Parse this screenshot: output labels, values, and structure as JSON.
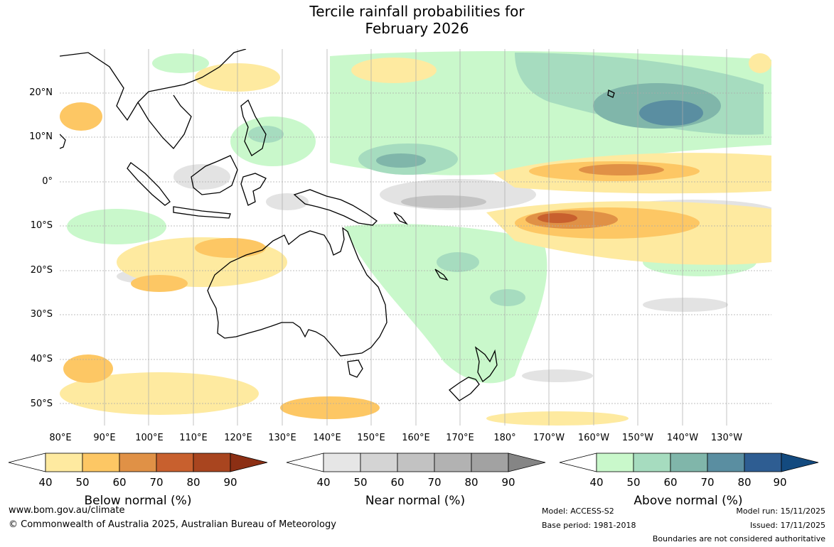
{
  "title": {
    "line1": "Tercile rainfall probabilities for",
    "line2": "February 2026"
  },
  "lat_labels": [
    "20°N",
    "10°N",
    "0°",
    "10°S",
    "20°S",
    "30°S",
    "40°S",
    "50°S"
  ],
  "lon_labels": [
    "80°E",
    "90°E",
    "100°E",
    "110°E",
    "120°E",
    "130°E",
    "140°E",
    "150°E",
    "160°E",
    "170°E",
    "180°",
    "170°W",
    "160°W",
    "150°W",
    "140°W",
    "130°W"
  ],
  "legends": [
    {
      "title": "Below normal (%)",
      "ticks": [
        "40",
        "50",
        "60",
        "70",
        "80",
        "90"
      ],
      "colors": [
        "#ffffff",
        "#feeaa0",
        "#fdc764",
        "#e09146",
        "#c8602e",
        "#a9451f",
        "#8c2f14"
      ]
    },
    {
      "title": "Near normal (%)",
      "ticks": [
        "40",
        "50",
        "60",
        "70",
        "80",
        "90"
      ],
      "colors": [
        "#ffffff",
        "#e6e6e6",
        "#d4d4d4",
        "#c2c2c2",
        "#b2b2b2",
        "#a2a2a2",
        "#858585"
      ]
    },
    {
      "title": "Above normal (%)",
      "ticks": [
        "40",
        "50",
        "60",
        "70",
        "80",
        "90"
      ],
      "colors": [
        "#ffffff",
        "#c9f8cb",
        "#a6dcbf",
        "#80b6aa",
        "#5a8ea1",
        "#2e5d92",
        "#134a7f"
      ]
    }
  ],
  "footer": {
    "website": "www.bom.gov.au/climate",
    "copyright": "© Commonwealth of Australia 2025, Australian Bureau of Meteorology",
    "model": "Model: ACCESS-S2",
    "base_period": "Base period: 1981-2018",
    "model_run": "Model run: 15/11/2025",
    "issued": "Issued: 17/11/2025",
    "disclaimer": "Boundaries are not considered authoritative"
  }
}
